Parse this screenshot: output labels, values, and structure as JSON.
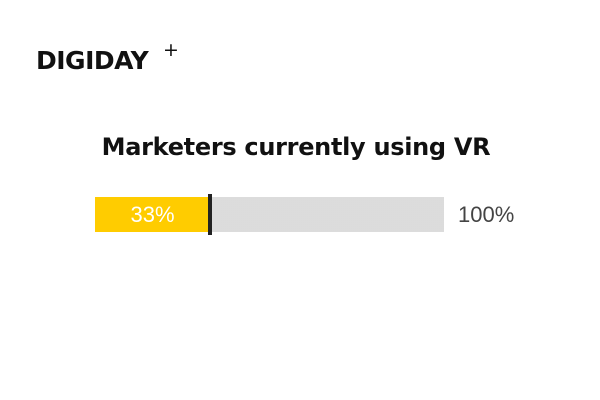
{
  "brand": {
    "logo_text": "DIGIDAY",
    "logo_plus": "+"
  },
  "chart_data": {
    "type": "bar",
    "title": "Marketers currently using VR",
    "value": 33,
    "max": 100,
    "value_label": "33%",
    "max_label": "100%",
    "colors": {
      "fill": "#ffcc00",
      "track": "#f4f4f4",
      "marker": "#222222"
    }
  }
}
